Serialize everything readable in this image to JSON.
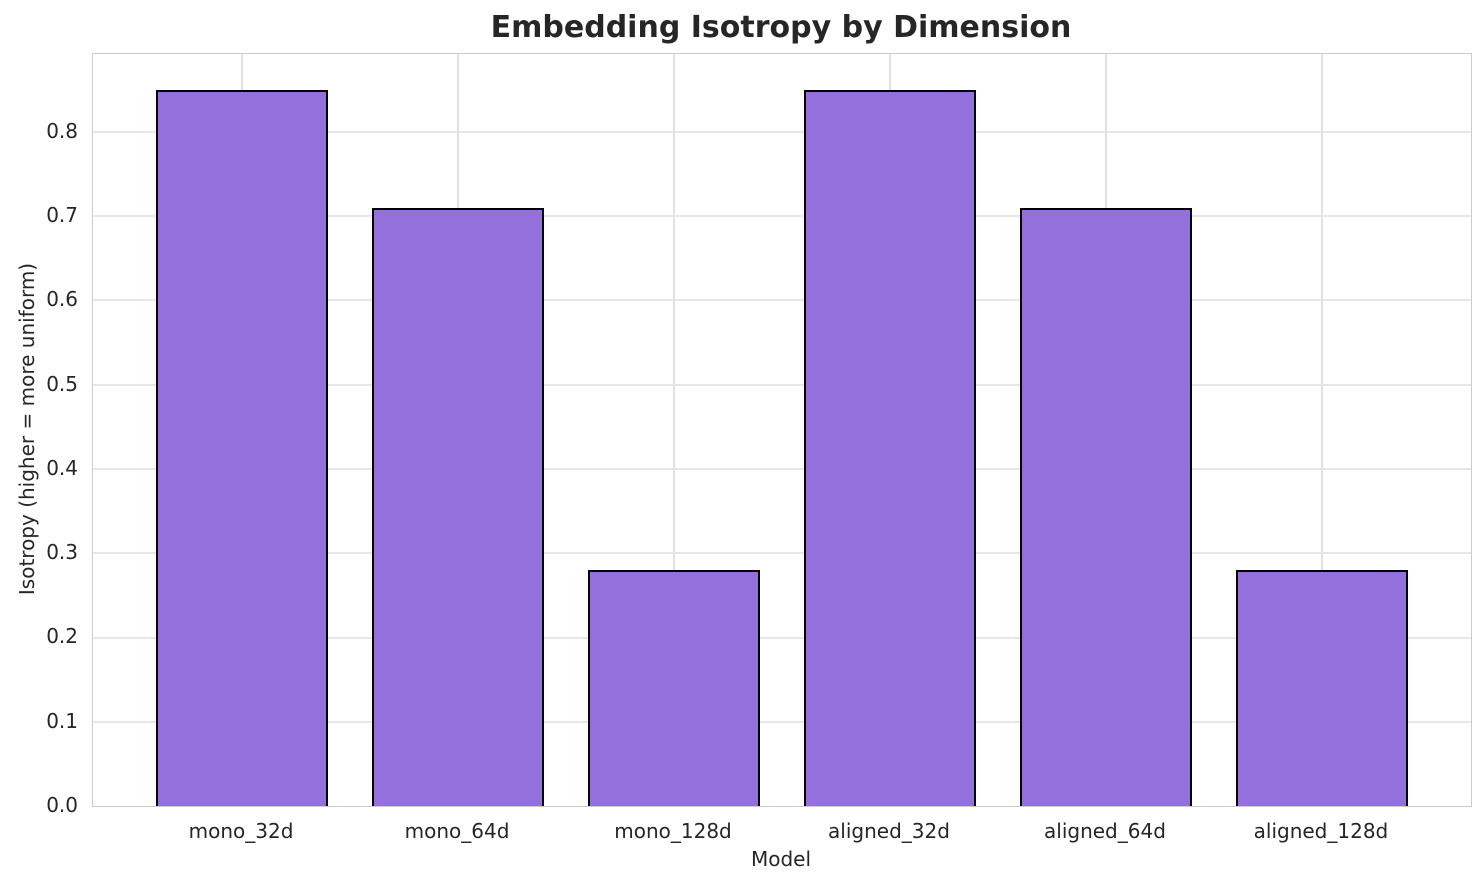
{
  "chart_data": {
    "type": "bar",
    "title": "Embedding Isotropy by Dimension",
    "xlabel": "Model",
    "ylabel": "Isotropy (higher = more uniform)",
    "categories": [
      "mono_32d",
      "mono_64d",
      "mono_128d",
      "aligned_32d",
      "aligned_64d",
      "aligned_128d"
    ],
    "values": [
      0.85,
      0.71,
      0.28,
      0.85,
      0.71,
      0.28
    ],
    "yticks": [
      0.0,
      0.1,
      0.2,
      0.3,
      0.4,
      0.5,
      0.6,
      0.7,
      0.8
    ],
    "ylim": [
      0,
      0.8925
    ],
    "grid": true,
    "legend": "none",
    "colors": {
      "bar_fill": "#9370DB",
      "bar_edge": "#000000",
      "grid_horizontal": "#e7e7e7",
      "grid_vertical": "#e2e2e2",
      "spine": "#cccccc",
      "text": "#262626",
      "background": "#ffffff"
    }
  }
}
